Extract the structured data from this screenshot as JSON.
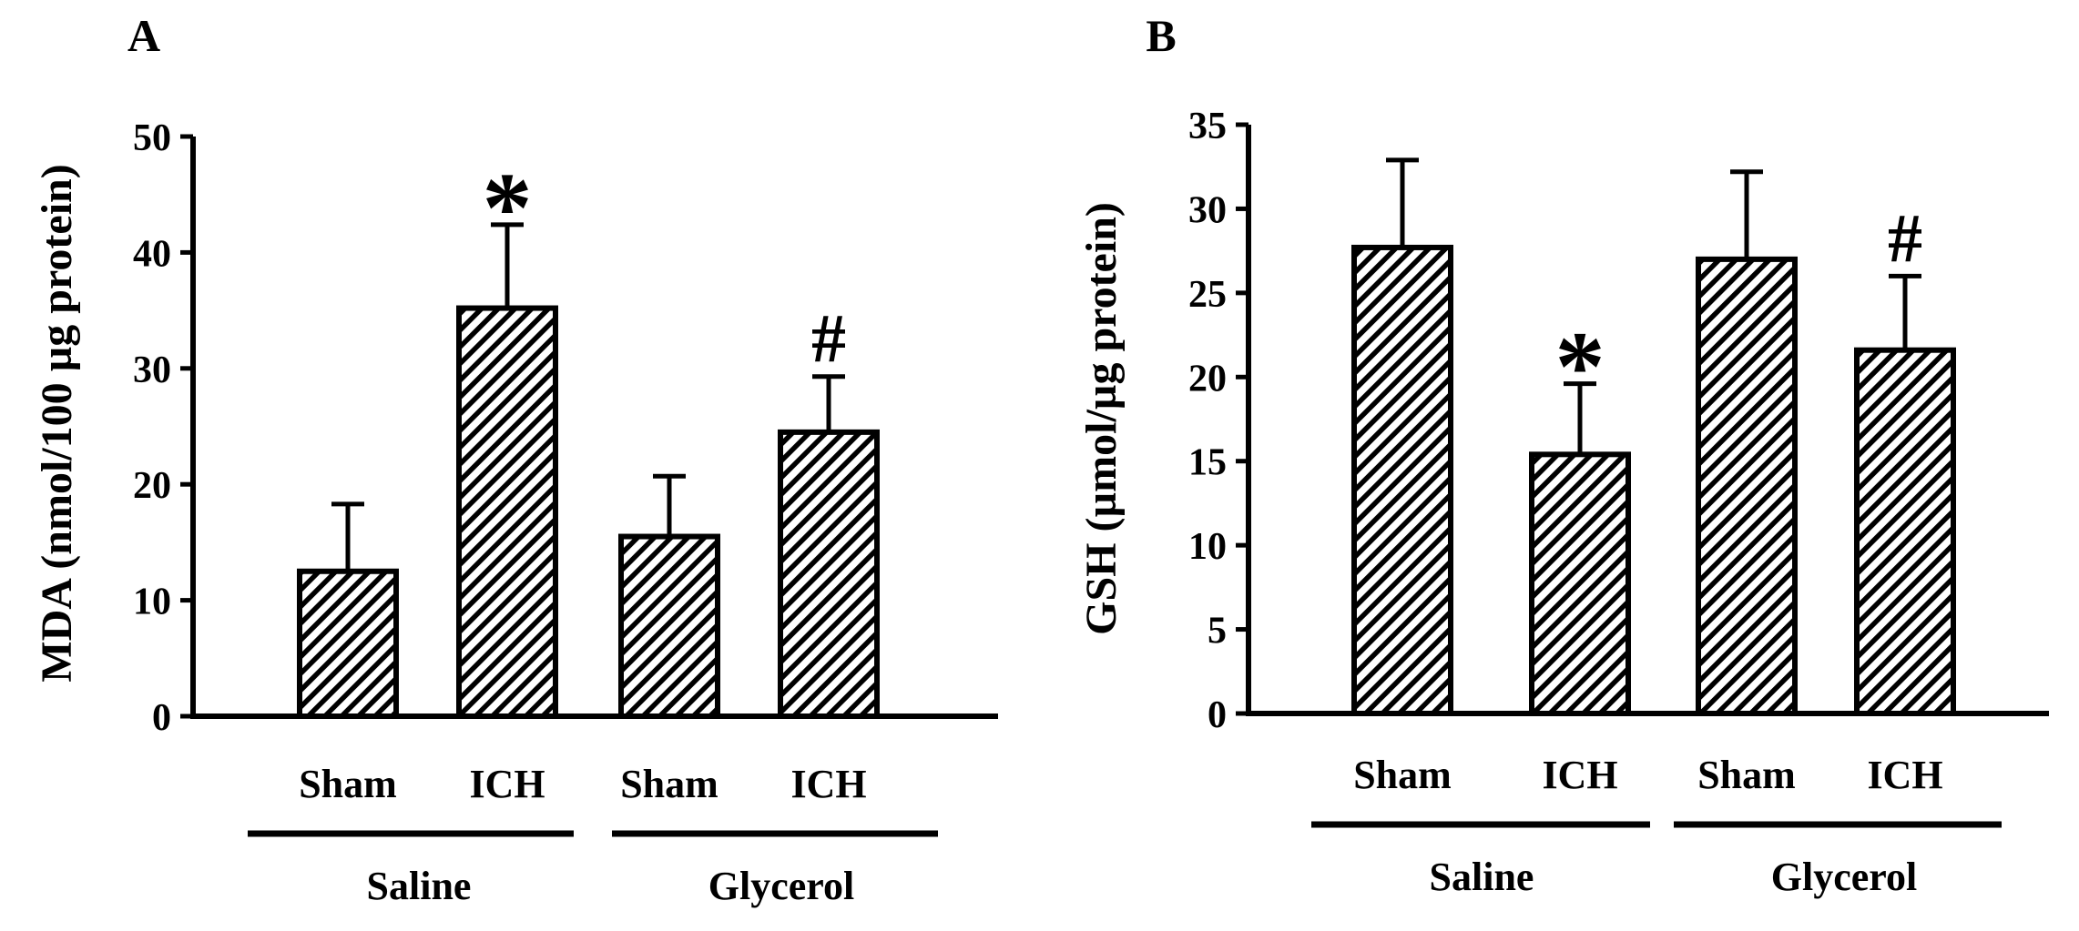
{
  "chart_data": [
    {
      "panel": "A",
      "type": "bar",
      "ylabel": "MDA (nmol/100 µg protein)",
      "ylim": [
        0,
        50
      ],
      "yticks": [
        0,
        10,
        20,
        30,
        40,
        50
      ],
      "categories": [
        "Sham",
        "ICH",
        "Sham",
        "ICH"
      ],
      "groups": [
        {
          "label": "Saline",
          "members": [
            0,
            1
          ]
        },
        {
          "label": "Glycerol",
          "members": [
            2,
            3
          ]
        }
      ],
      "values": [
        12.5,
        35.2,
        15.5,
        24.5
      ],
      "errors": [
        5.8,
        7.2,
        5.2,
        4.8
      ],
      "annotations": [
        "",
        "*",
        "",
        "#"
      ],
      "bar_fill": "diagonal-hatch",
      "grid": false
    },
    {
      "panel": "B",
      "type": "bar",
      "ylabel": "GSH (µmol/µg protein)",
      "ylim": [
        0,
        35
      ],
      "yticks": [
        0,
        5,
        10,
        15,
        20,
        25,
        30,
        35
      ],
      "categories": [
        "Sham",
        "ICH",
        "Sham",
        "ICH"
      ],
      "groups": [
        {
          "label": "Saline",
          "members": [
            0,
            1
          ]
        },
        {
          "label": "Glycerol",
          "members": [
            2,
            3
          ]
        }
      ],
      "values": [
        27.7,
        15.4,
        27.0,
        21.6
      ],
      "errors": [
        5.2,
        4.2,
        5.2,
        4.4
      ],
      "annotations": [
        "",
        "*",
        "",
        "#"
      ],
      "bar_fill": "diagonal-hatch",
      "grid": false
    }
  ],
  "colors": {
    "ink": "#000000",
    "bar": "#ffffff"
  }
}
